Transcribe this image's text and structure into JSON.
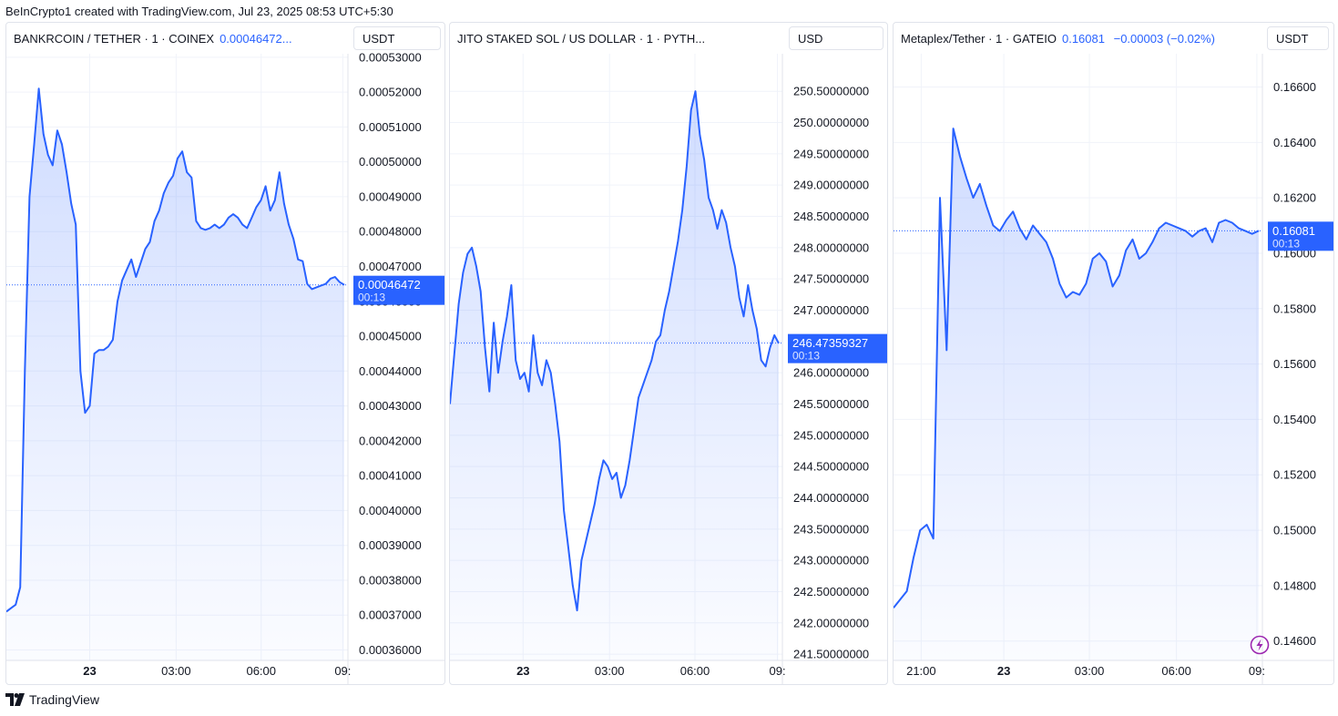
{
  "header": {
    "text": "BeInCrypto1 created with TradingView.com, Jul 23, 2025 08:53 UTC+5:30"
  },
  "footer": {
    "logo_icon": "tradingview-logo-icon",
    "brand": "TradingView"
  },
  "colors": {
    "line": "#2962ff",
    "grid": "#f0f3fa",
    "text": "#131722",
    "label_bg": "#2962ff",
    "bolt": "#9c27b0"
  },
  "chart_data": [
    {
      "type": "area",
      "title": "BANKRCOIN / TETHER · 1 · COINEX",
      "last_price": "0.00046472...",
      "unit": "USDT",
      "price_label": "0.00046472",
      "timer": "00:13",
      "ylim": [
        0.000357,
        0.000531
      ],
      "y_ticks": [
        "0.00036000",
        "0.00037000",
        "0.00038000",
        "0.00039000",
        "0.00040000",
        "0.00041000",
        "0.00042000",
        "0.00043000",
        "0.00044000",
        "0.00045000",
        "0.00046000",
        "0.00047000",
        "0.00048000",
        "0.00049000",
        "0.00050000",
        "0.00051000",
        "0.00052000",
        "0.00053000"
      ],
      "y_tick_values": [
        0.00036,
        0.00037,
        0.00038,
        0.00039,
        0.0004,
        0.00041,
        0.00042,
        0.00043,
        0.00044,
        0.00045,
        0.00046,
        0.00047,
        0.00048,
        0.00049,
        0.0005,
        0.00051,
        0.00052,
        0.00053
      ],
      "x_ticks": [
        {
          "label": "23",
          "pos": 0.244
        },
        {
          "label": "03:00",
          "pos": 0.497
        },
        {
          "label": "06:00",
          "pos": 0.746
        },
        {
          "label": "09:",
          "pos": 0.985
        }
      ],
      "last_value": 0.00046472,
      "series": [
        0.000371,
        0.000372,
        0.000373,
        0.000378,
        0.00044,
        0.00049,
        0.000505,
        0.000521,
        0.000508,
        0.000502,
        0.000499,
        0.000509,
        0.000505,
        0.000497,
        0.000488,
        0.000482,
        0.00044,
        0.000428,
        0.00043,
        0.000445,
        0.000446,
        0.000446,
        0.000447,
        0.000449,
        0.00046,
        0.000466,
        0.000469,
        0.000472,
        0.000467,
        0.000471,
        0.000475,
        0.000477,
        0.000483,
        0.000486,
        0.000491,
        0.000494,
        0.000496,
        0.000501,
        0.000503,
        0.000497,
        0.0004955,
        0.000483,
        0.000481,
        0.0004805,
        0.000481,
        0.000482,
        0.000481,
        0.000482,
        0.000484,
        0.000485,
        0.000484,
        0.000482,
        0.000481,
        0.000484,
        0.000487,
        0.000489,
        0.000493,
        0.000486,
        0.000489,
        0.000497,
        0.000488,
        0.000482,
        0.000478,
        0.000472,
        0.0004715,
        0.000465,
        0.0004635,
        0.000464,
        0.0004645,
        0.000465,
        0.0004665,
        0.000467,
        0.0004655,
        0.00046472
      ]
    },
    {
      "type": "area",
      "title": "JITO STAKED SOL / US DOLLAR · 1 · PYTH...",
      "last_price": "",
      "unit": "USD",
      "price_label": "246.47359327",
      "timer": "00:13",
      "ylim": [
        241.4,
        251.1
      ],
      "y_ticks": [
        "241.50000000",
        "242.00000000",
        "242.50000000",
        "243.00000000",
        "243.50000000",
        "244.00000000",
        "244.50000000",
        "245.00000000",
        "245.50000000",
        "246.00000000",
        "246.50000000",
        "247.00000000",
        "247.50000000",
        "248.00000000",
        "248.50000000",
        "249.00000000",
        "249.50000000",
        "250.00000000",
        "250.50000000"
      ],
      "y_tick_values": [
        241.5,
        242,
        242.5,
        243,
        243.5,
        244,
        244.5,
        245,
        245.5,
        246,
        246.5,
        247,
        247.5,
        248,
        248.5,
        249,
        249.5,
        250,
        250.5
      ],
      "x_ticks": [
        {
          "label": "23",
          "pos": 0.22
        },
        {
          "label": "03:00",
          "pos": 0.48
        },
        {
          "label": "06:00",
          "pos": 0.737
        },
        {
          "label": "09:",
          "pos": 0.985
        }
      ],
      "last_value": 246.47359327,
      "series": [
        245.5,
        246.3,
        247.1,
        247.6,
        247.9,
        248.0,
        247.7,
        247.3,
        246.4,
        245.7,
        246.8,
        246.0,
        246.5,
        246.9,
        247.4,
        246.2,
        245.9,
        246.0,
        245.7,
        246.6,
        246.0,
        245.8,
        246.2,
        246.0,
        245.5,
        244.9,
        243.8,
        243.2,
        242.6,
        242.2,
        243.0,
        243.3,
        243.6,
        243.9,
        244.3,
        244.6,
        244.5,
        244.3,
        244.4,
        244.0,
        244.2,
        244.6,
        245.1,
        245.6,
        245.8,
        246.0,
        246.2,
        246.5,
        246.6,
        247.0,
        247.3,
        247.7,
        248.1,
        248.6,
        249.3,
        250.2,
        250.5,
        249.8,
        249.4,
        248.8,
        248.6,
        248.3,
        248.6,
        248.4,
        248.0,
        247.7,
        247.2,
        246.9,
        247.4,
        247.0,
        246.7,
        246.2,
        246.1,
        246.4,
        246.6,
        246.47
      ]
    },
    {
      "type": "area",
      "title": "Metaplex/Tether · 1 · GATEIO",
      "last_price": "0.16081",
      "change": "−0.00003 (−0.02%)",
      "unit": "USDT",
      "price_label": "0.16081",
      "timer": "00:13",
      "ylim": [
        0.1453,
        0.1672
      ],
      "y_ticks": [
        "0.14600",
        "0.14800",
        "0.15000",
        "0.15200",
        "0.15400",
        "0.15600",
        "0.15800",
        "0.16000",
        "0.16200",
        "0.16400",
        "0.16600"
      ],
      "y_tick_values": [
        0.146,
        0.148,
        0.15,
        0.152,
        0.154,
        0.156,
        0.158,
        0.16,
        0.162,
        0.164,
        0.166
      ],
      "x_ticks": [
        {
          "label": "21:00",
          "pos": 0.075
        },
        {
          "label": "23",
          "pos": 0.299
        },
        {
          "label": "03:00",
          "pos": 0.531
        },
        {
          "label": "06:00",
          "pos": 0.767
        },
        {
          "label": "09:",
          "pos": 0.985
        }
      ],
      "last_value": 0.16081,
      "series": [
        0.1472,
        0.1475,
        0.1478,
        0.149,
        0.15,
        0.1502,
        0.1497,
        0.162,
        0.1565,
        0.1645,
        0.1635,
        0.1627,
        0.162,
        0.1625,
        0.1617,
        0.161,
        0.1608,
        0.1612,
        0.1615,
        0.1609,
        0.1605,
        0.161,
        0.1607,
        0.1604,
        0.1598,
        0.1589,
        0.1584,
        0.1586,
        0.1585,
        0.1589,
        0.1598,
        0.16,
        0.1597,
        0.1588,
        0.1592,
        0.1601,
        0.1605,
        0.1598,
        0.16,
        0.1604,
        0.1609,
        0.1611,
        0.161,
        0.1609,
        0.1608,
        0.1606,
        0.1608,
        0.1609,
        0.1604,
        0.1611,
        0.1612,
        0.1611,
        0.1609,
        0.1608,
        0.1607,
        0.16081
      ]
    }
  ]
}
